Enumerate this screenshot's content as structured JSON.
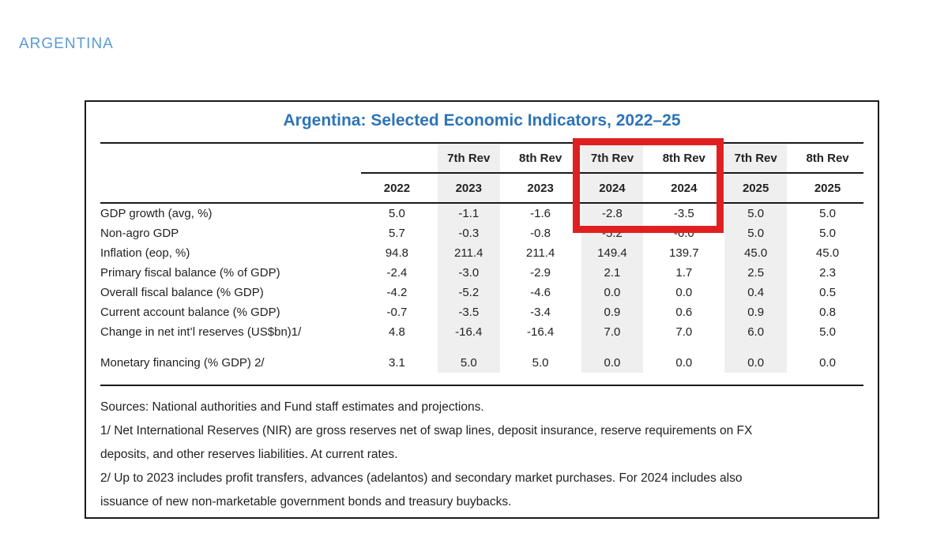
{
  "page_label": "ARGENTINA",
  "colors": {
    "title_blue": "#2e74b5",
    "label_blue": "#5b9bd5",
    "highlight_red": "#e02020",
    "shade_gray": "#efefef",
    "rule_black": "#1a1a1a",
    "ink": "#222222"
  },
  "table": {
    "title": "Argentina: Selected Economic Indicators, 2022–25",
    "rev_labels": [
      "",
      "7th Rev",
      "8th Rev",
      "7th Rev",
      "8th Rev",
      "7th Rev",
      "8th Rev"
    ],
    "years": [
      "2022",
      "2023",
      "2023",
      "2024",
      "2024",
      "2025",
      "2025"
    ],
    "rows": [
      {
        "label": "GDP growth (avg, %)",
        "values": [
          "5.0",
          "-1.1",
          "-1.6",
          "-2.8",
          "-3.5",
          "5.0",
          "5.0"
        ]
      },
      {
        "label": "Non-agro GDP",
        "values": [
          "5.7",
          "-0.3",
          "-0.8",
          "-5.2",
          "-6.0",
          "5.0",
          "5.0"
        ]
      },
      {
        "label": "Inflation (eop, %)",
        "values": [
          "94.8",
          "211.4",
          "211.4",
          "149.4",
          "139.7",
          "45.0",
          "45.0"
        ]
      },
      {
        "label": "Primary fiscal balance (% of GDP)",
        "values": [
          "-2.4",
          "-3.0",
          "-2.9",
          "2.1",
          "1.7",
          "2.5",
          "2.3"
        ]
      },
      {
        "label": "Overall fiscal balance (% GDP)",
        "values": [
          "-4.2",
          "-5.2",
          "-4.6",
          "0.0",
          "0.0",
          "0.4",
          "0.5"
        ]
      },
      {
        "label": "Current account balance (% GDP)",
        "values": [
          "-0.7",
          "-3.5",
          "-3.4",
          "0.9",
          "0.6",
          "0.9",
          "0.8"
        ]
      },
      {
        "label": "Change in net int’l reserves (US$bn)1/",
        "values": [
          "4.8",
          "-16.4",
          "-16.4",
          "7.0",
          "7.0",
          "6.0",
          "5.0"
        ]
      },
      {
        "label": "Monetary financing (% GDP) 2/",
        "values": [
          "3.1",
          "5.0",
          "5.0",
          "0.0",
          "0.0",
          "0.0",
          "0.0"
        ]
      }
    ],
    "footnote_lines": [
      "Sources: National authorities and Fund staff estimates and projections.",
      "1/ Net International Reserves (NIR) are gross reserves net of swap lines, deposit insurance, reserve requirements on FX",
      "deposits, and other reserves liabilities. At current rates.",
      "2/ Up to 2023 includes profit transfers, advances (adelantos) and secondary market purchases. For 2024 includes also",
      "issuance of new non-marketable government bonds and treasury buybacks."
    ]
  },
  "highlight": {
    "description": "red annotation box around 7th Rev 2024 and 8th Rev 2024 columns"
  },
  "chart_data": {
    "type": "table",
    "title": "Argentina: Selected Economic Indicators, 2022–25",
    "columns": [
      "Indicator",
      "2022",
      "7th Rev 2023",
      "8th Rev 2023",
      "7th Rev 2024",
      "8th Rev 2024",
      "7th Rev 2025",
      "8th Rev 2025"
    ],
    "rows": [
      [
        "GDP growth (avg, %)",
        5.0,
        -1.1,
        -1.6,
        -2.8,
        -3.5,
        5.0,
        5.0
      ],
      [
        "Non-agro GDP",
        5.7,
        -0.3,
        -0.8,
        -5.2,
        -6.0,
        5.0,
        5.0
      ],
      [
        "Inflation (eop, %)",
        94.8,
        211.4,
        211.4,
        149.4,
        139.7,
        45.0,
        45.0
      ],
      [
        "Primary fiscal balance (% of GDP)",
        -2.4,
        -3.0,
        -2.9,
        2.1,
        1.7,
        2.5,
        2.3
      ],
      [
        "Overall fiscal balance (% GDP)",
        -4.2,
        -5.2,
        -4.6,
        0.0,
        0.0,
        0.4,
        0.5
      ],
      [
        "Current account balance (% GDP)",
        -0.7,
        -3.5,
        -3.4,
        0.9,
        0.6,
        0.9,
        0.8
      ],
      [
        "Change in net int’l reserves (US$bn)1/",
        4.8,
        -16.4,
        -16.4,
        7.0,
        7.0,
        6.0,
        5.0
      ],
      [
        "Monetary financing (% GDP) 2/",
        3.1,
        5.0,
        5.0,
        0.0,
        0.0,
        0.0,
        0.0
      ]
    ]
  }
}
